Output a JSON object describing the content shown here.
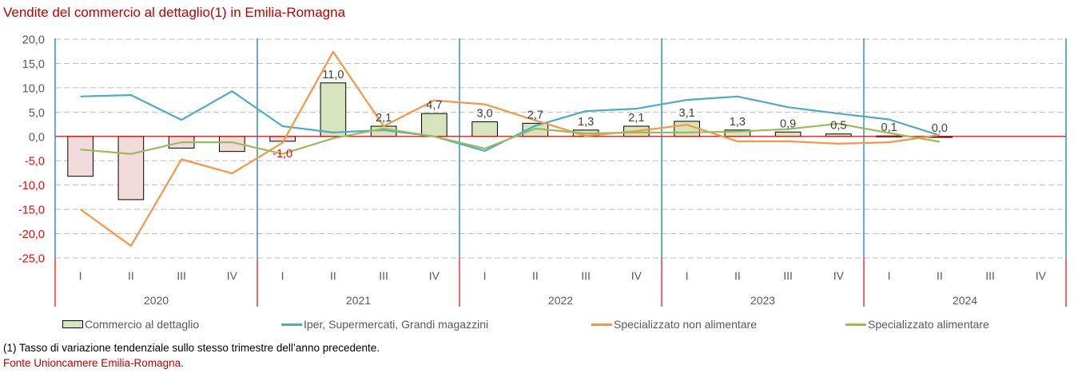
{
  "chart_data": {
    "type": "bar",
    "title": "Vendite del commercio al dettaglio(1) in Emilia-Romagna",
    "xlabel": "",
    "ylabel": "",
    "ylim": [
      -25,
      20
    ],
    "yticks": [
      "20,0",
      "15,0",
      "10,0",
      "5,0",
      "0,0",
      "-5,0",
      "-10,0",
      "-15,0",
      "-20,0",
      "-25,0"
    ],
    "ytick_values": [
      20,
      15,
      10,
      5,
      0,
      -5,
      -10,
      -15,
      -20,
      -25
    ],
    "grid": true,
    "legend_position": "bottom",
    "years": [
      "2020",
      "2021",
      "2022",
      "2023",
      "2024"
    ],
    "quarters": [
      "I",
      "II",
      "III",
      "IV"
    ],
    "categories": [
      "2020-I",
      "2020-II",
      "2020-III",
      "2020-IV",
      "2021-I",
      "2021-II",
      "2021-III",
      "2021-IV",
      "2022-I",
      "2022-II",
      "2022-III",
      "2022-IV",
      "2023-I",
      "2023-II",
      "2023-III",
      "2023-IV",
      "2024-I",
      "2024-II",
      "2024-III",
      "2024-IV"
    ],
    "series": [
      {
        "name": "Commercio al dettaglio",
        "kind": "bar",
        "color": "#d7e4bd",
        "negative_color": "#f2dcdb",
        "values": [
          -8.2,
          -13.0,
          -2.4,
          -3.1,
          -1.0,
          11.0,
          2.1,
          4.7,
          3.0,
          2.7,
          1.3,
          2.1,
          3.1,
          1.3,
          0.9,
          0.5,
          0.1,
          0.0,
          null,
          null
        ],
        "labels": [
          null,
          null,
          null,
          null,
          "-1,0",
          "11,0",
          "2,1",
          "4,7",
          "3,0",
          "2,7",
          "1,3",
          "2,1",
          "3,1",
          "1,3",
          "0,9",
          "0,5",
          "0,1",
          "0,0",
          null,
          null
        ]
      },
      {
        "name": "Iper, Supermercati, Grandi magazzini",
        "kind": "line",
        "color": "#4bacc6",
        "values": [
          8.2,
          8.5,
          3.4,
          9.3,
          2.1,
          0.8,
          1.3,
          0.0,
          -3.0,
          2.2,
          5.2,
          5.7,
          7.5,
          8.2,
          6.0,
          4.7,
          3.5,
          0.2,
          null,
          null
        ]
      },
      {
        "name": "Specializzato non alimentare",
        "kind": "line",
        "color": "#f79646",
        "values": [
          -15.0,
          -22.5,
          -4.7,
          -7.6,
          -1.3,
          17.4,
          2.1,
          7.4,
          6.6,
          3.3,
          0.1,
          1.1,
          2.4,
          -1.0,
          -1.0,
          -1.5,
          -1.2,
          0.3,
          null,
          null
        ]
      },
      {
        "name": "Specializzato alimentare",
        "kind": "line",
        "color": "#9bbb59",
        "values": [
          -2.7,
          -3.6,
          -1.2,
          -1.2,
          -3.6,
          -0.4,
          1.6,
          0.0,
          -2.5,
          1.6,
          0.6,
          0.8,
          0.8,
          1.0,
          1.5,
          2.6,
          0.7,
          -1.1,
          null,
          null
        ]
      }
    ]
  },
  "colors": {
    "title": "#c00000",
    "zero_line": "#ff0000",
    "year_divider": "#0070c0",
    "positive_tick": "#595959",
    "negative_tick": "#ff0000",
    "gridline": "#bfbfbf"
  },
  "legend": {
    "items": [
      {
        "label": "Commercio al dettaglio",
        "swatch": "box",
        "color": "#d7e4bd"
      },
      {
        "label": "Iper, Supermercati, Grandi magazzini",
        "swatch": "line",
        "color": "#4bacc6"
      },
      {
        "label": "Specializzato non alimentare",
        "swatch": "line",
        "color": "#f79646"
      },
      {
        "label": "Specializzato alimentare",
        "swatch": "line",
        "color": "#9bbb59"
      }
    ]
  },
  "footnote": "(1) Tasso di variazione tendenziale sullo stesso trimestre dell’anno precedente.",
  "source": "Fonte Unioncamere Emilia-Romagna."
}
